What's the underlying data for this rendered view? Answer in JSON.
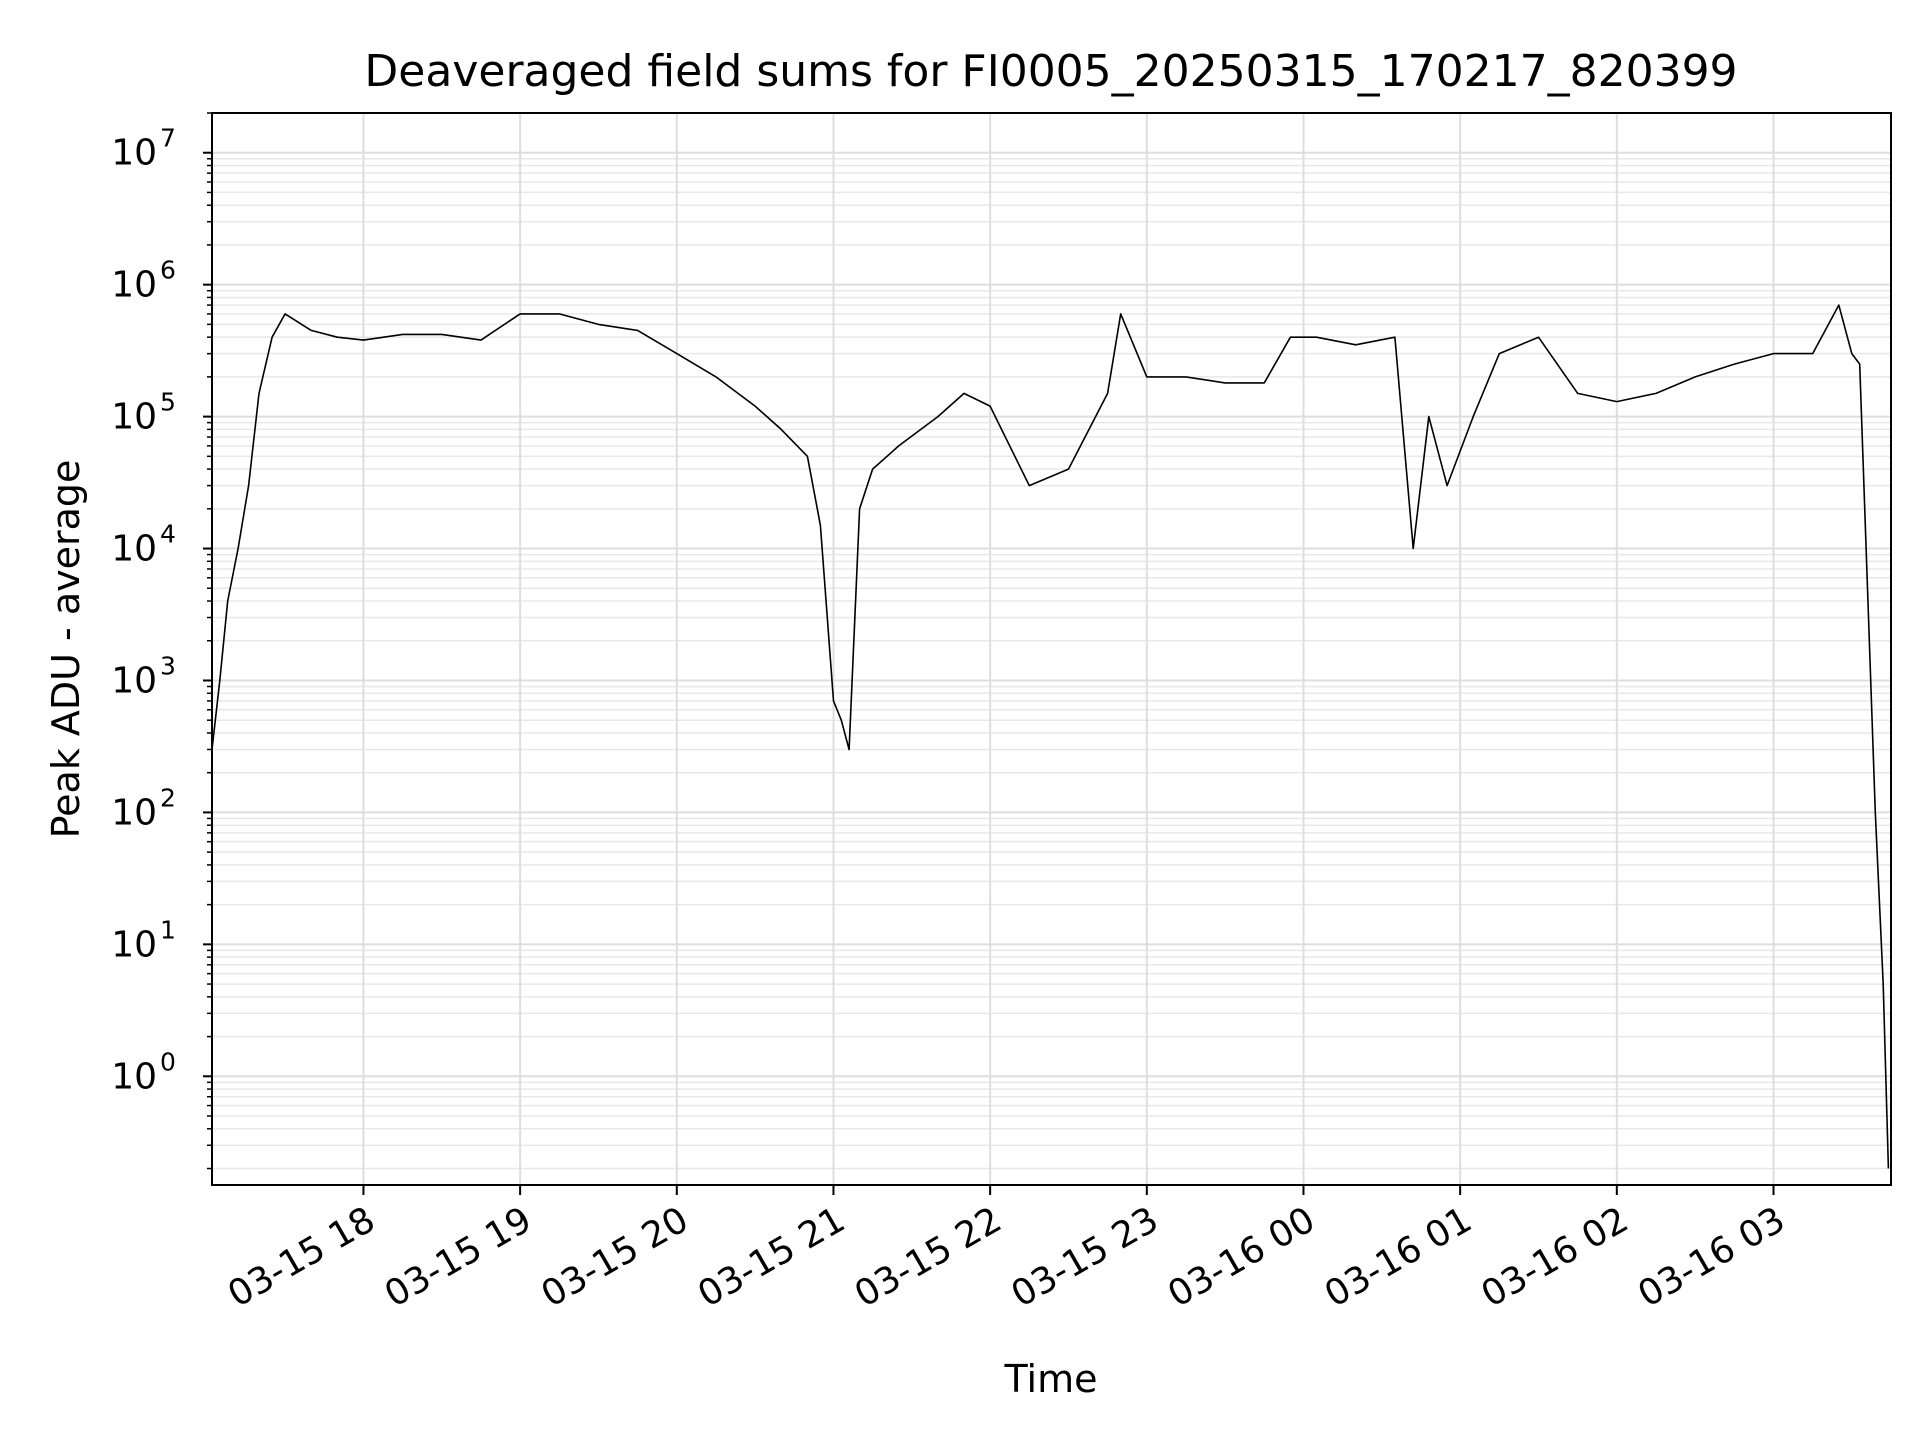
{
  "chart_data": {
    "type": "line",
    "title": "Deaveraged field sums for FI0005_20250315_170217_820399",
    "xlabel": "Time",
    "ylabel": "Peak ADU - average",
    "yscale": "log",
    "ylim": [
      0.15,
      20000000
    ],
    "xlim": [
      "03-15 17:02",
      "03-16 03:45"
    ],
    "grid": true,
    "color": "#000000",
    "x_ticks": [
      "03-15 18",
      "03-15 19",
      "03-15 20",
      "03-15 21",
      "03-15 22",
      "03-15 23",
      "03-16 00",
      "03-16 01",
      "03-16 02",
      "03-16 03"
    ],
    "y_ticks": [
      {
        "base": "10",
        "exp": "0",
        "value": 1
      },
      {
        "base": "10",
        "exp": "1",
        "value": 10
      },
      {
        "base": "10",
        "exp": "2",
        "value": 100
      },
      {
        "base": "10",
        "exp": "3",
        "value": 1000
      },
      {
        "base": "10",
        "exp": "4",
        "value": 10000
      },
      {
        "base": "10",
        "exp": "5",
        "value": 100000
      },
      {
        "base": "10",
        "exp": "6",
        "value": 1000000
      },
      {
        "base": "10",
        "exp": "7",
        "value": 10000000
      }
    ],
    "series": [
      {
        "x": [
          "03-15 17:02",
          "03-15 17:05",
          "03-15 17:08",
          "03-15 17:12",
          "03-15 17:16",
          "03-15 17:20",
          "03-15 17:25",
          "03-15 17:30",
          "03-15 17:40",
          "03-15 17:50",
          "03-15 18:00",
          "03-15 18:15",
          "03-15 18:30",
          "03-15 18:45",
          "03-15 19:00",
          "03-15 19:15",
          "03-15 19:30",
          "03-15 19:45",
          "03-15 20:00",
          "03-15 20:15",
          "03-15 20:30",
          "03-15 20:40",
          "03-15 20:50",
          "03-15 20:55",
          "03-15 21:00",
          "03-15 21:03",
          "03-15 21:06",
          "03-15 21:10",
          "03-15 21:15",
          "03-15 21:25",
          "03-15 21:40",
          "03-15 21:50",
          "03-15 22:00",
          "03-15 22:15",
          "03-15 22:30",
          "03-15 22:45",
          "03-15 22:50",
          "03-15 23:00",
          "03-15 23:15",
          "03-15 23:30",
          "03-15 23:45",
          "03-15 23:55",
          "03-16 00:05",
          "03-16 00:20",
          "03-16 00:35",
          "03-16 00:42",
          "03-16 00:48",
          "03-16 00:55",
          "03-16 01:05",
          "03-16 01:15",
          "03-16 01:30",
          "03-16 01:45",
          "03-16 02:00",
          "03-16 02:15",
          "03-16 02:30",
          "03-16 02:45",
          "03-16 03:00",
          "03-16 03:15",
          "03-16 03:25",
          "03-16 03:30",
          "03-16 03:33",
          "03-16 03:36",
          "03-16 03:39",
          "03-16 03:42",
          "03-16 03:44"
        ],
        "y": [
          300,
          1000,
          4000,
          10000,
          30000,
          150000,
          400000,
          600000,
          450000,
          400000,
          380000,
          420000,
          420000,
          380000,
          600000,
          600000,
          500000,
          450000,
          300000,
          200000,
          120000,
          80000,
          50000,
          15000,
          700,
          500,
          300,
          20000,
          40000,
          60000,
          100000,
          150000,
          120000,
          30000,
          40000,
          150000,
          600000,
          200000,
          200000,
          180000,
          180000,
          400000,
          400000,
          350000,
          400000,
          10000,
          100000,
          30000,
          100000,
          300000,
          400000,
          150000,
          130000,
          150000,
          200000,
          250000,
          300000,
          300000,
          700000,
          300000,
          250000,
          5000,
          100,
          5,
          0.2
        ]
      }
    ]
  }
}
